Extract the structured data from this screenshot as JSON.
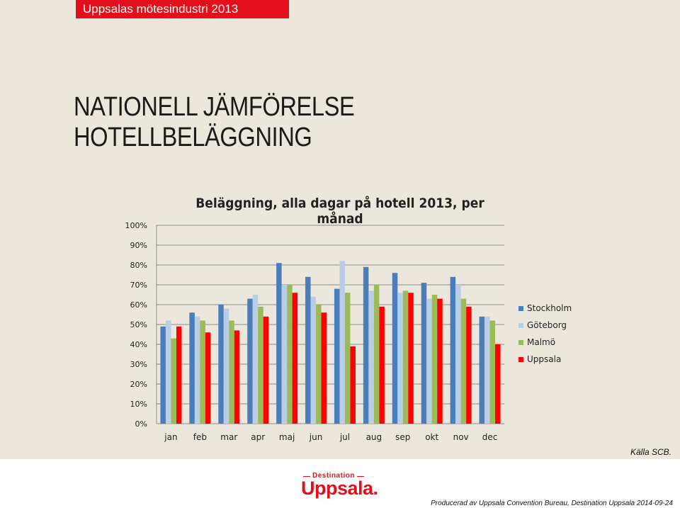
{
  "header": {
    "tab_label": "Uppsalas mötesindustri 2013",
    "accent_color": "#e3101c"
  },
  "slide": {
    "title": "NATIONELL JÄMFÖRELSE HOTELLBELÄGGNING"
  },
  "chart_data": {
    "type": "bar",
    "title": "Beläggning, alla dagar på hotell 2013, per månad",
    "xlabel": "",
    "ylabel": "",
    "ylim": [
      0,
      100
    ],
    "y_ticks": [
      "0%",
      "10%",
      "20%",
      "30%",
      "40%",
      "50%",
      "60%",
      "70%",
      "80%",
      "90%",
      "100%"
    ],
    "categories": [
      "jan",
      "feb",
      "mar",
      "apr",
      "maj",
      "jun",
      "jul",
      "aug",
      "sep",
      "okt",
      "nov",
      "dec"
    ],
    "grid": true,
    "legend_position": "right",
    "series": [
      {
        "name": "Stockholm",
        "color": "#4a7ebb",
        "values": [
          49,
          56,
          60,
          63,
          81,
          74,
          68,
          79,
          76,
          71,
          74,
          54
        ]
      },
      {
        "name": "Göteborg",
        "color": "#b9cde5",
        "values": [
          52,
          54,
          58,
          65,
          70,
          64,
          82,
          67,
          66,
          63,
          70,
          54
        ]
      },
      {
        "name": "Malmö",
        "color": "#9bbb59",
        "values": [
          43,
          52,
          52,
          59,
          70,
          60,
          66,
          70,
          67,
          65,
          63,
          52
        ]
      },
      {
        "name": "Uppsala",
        "color": "#ff0000",
        "values": [
          49,
          46,
          47,
          54,
          66,
          56,
          39,
          59,
          66,
          63,
          59,
          40
        ]
      }
    ],
    "source": "Källa SCB."
  },
  "footer": {
    "logo_small": "Destination",
    "logo_big": "Uppsala.",
    "credit": "Producerad av Uppsala Convention Bureau, Destination Uppsala 2014-09-24"
  }
}
